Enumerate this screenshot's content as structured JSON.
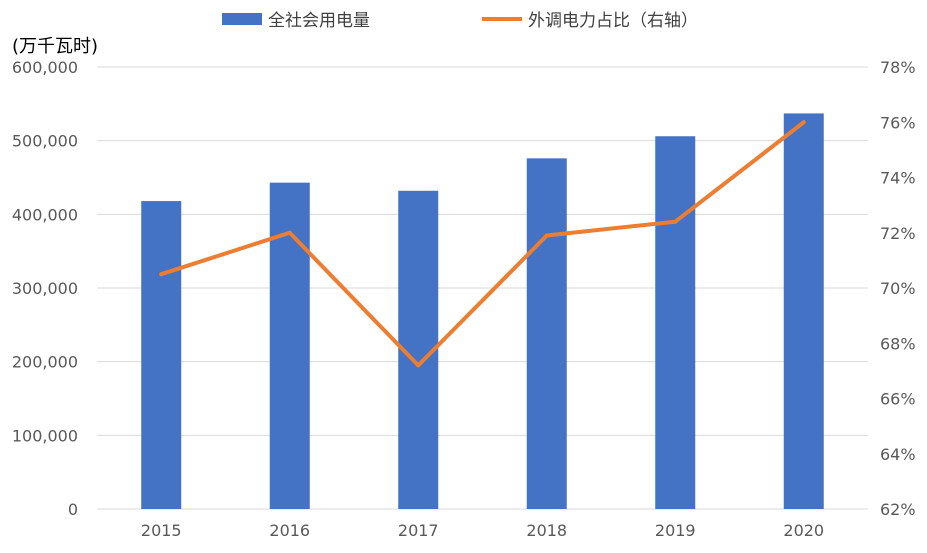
{
  "chart_data": {
    "type": "bar",
    "categories": [
      "2015",
      "2016",
      "2017",
      "2018",
      "2019",
      "2020"
    ],
    "y_unit_label": "(万千瓦时)",
    "ylim": [
      0,
      600000
    ],
    "y_ticks": [
      "0",
      "100,000",
      "200,000",
      "300,000",
      "400,000",
      "500,000",
      "600,000"
    ],
    "y2lim": [
      0.62,
      0.78
    ],
    "y2_ticks": [
      "62%",
      "64%",
      "66%",
      "68%",
      "70%",
      "72%",
      "74%",
      "76%",
      "78%"
    ],
    "grid": true,
    "legend_position": "top",
    "series": [
      {
        "name": "全社会用电量",
        "type": "bar",
        "axis": "left",
        "color": "#4472C4",
        "values": [
          418000,
          443000,
          432000,
          476000,
          506000,
          537000
        ]
      },
      {
        "name": "外调电力占比（右轴）",
        "type": "line",
        "axis": "right",
        "color": "#ED7D31",
        "values": [
          0.705,
          0.72,
          0.672,
          0.719,
          0.724,
          0.76
        ]
      }
    ]
  }
}
